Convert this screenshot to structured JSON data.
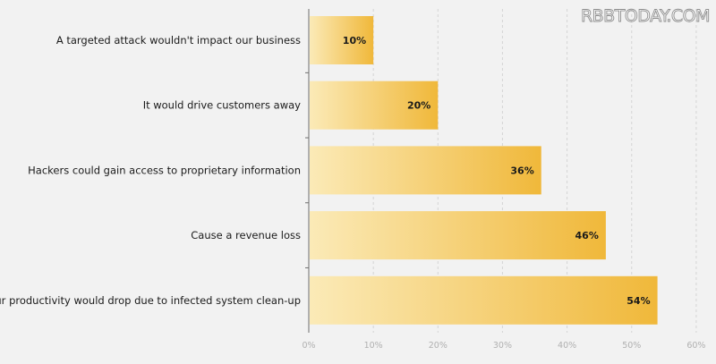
{
  "watermark": "RBBTODAY.COM",
  "colors": {
    "background": "#f2f2f2",
    "bar_light": "#fbeab7",
    "bar_dark": "#f0b83a",
    "grid": "#d4d4d4",
    "axis": "#6e6e6e",
    "tick_text": "#b0b0b0"
  },
  "chart_data": {
    "type": "bar",
    "orientation": "horizontal",
    "categories": [
      "A targeted attack wouldn't impact our business",
      "It would drive customers away",
      "Hackers could gain access to proprietary information",
      "Cause a revenue loss",
      "Our productivity would drop due to infected system clean-up"
    ],
    "values": [
      10,
      20,
      36,
      46,
      54
    ],
    "value_labels": [
      "10%",
      "20%",
      "36%",
      "46%",
      "54%"
    ],
    "xlim": [
      0,
      60
    ],
    "xticks": [
      0,
      10,
      20,
      30,
      40,
      50,
      60
    ],
    "xtick_labels": [
      "0%",
      "10%",
      "20%",
      "30%",
      "40%",
      "50%",
      "60%"
    ],
    "grid": "vertical dashed",
    "legend": "none",
    "title": "",
    "xlabel": "",
    "ylabel": ""
  }
}
